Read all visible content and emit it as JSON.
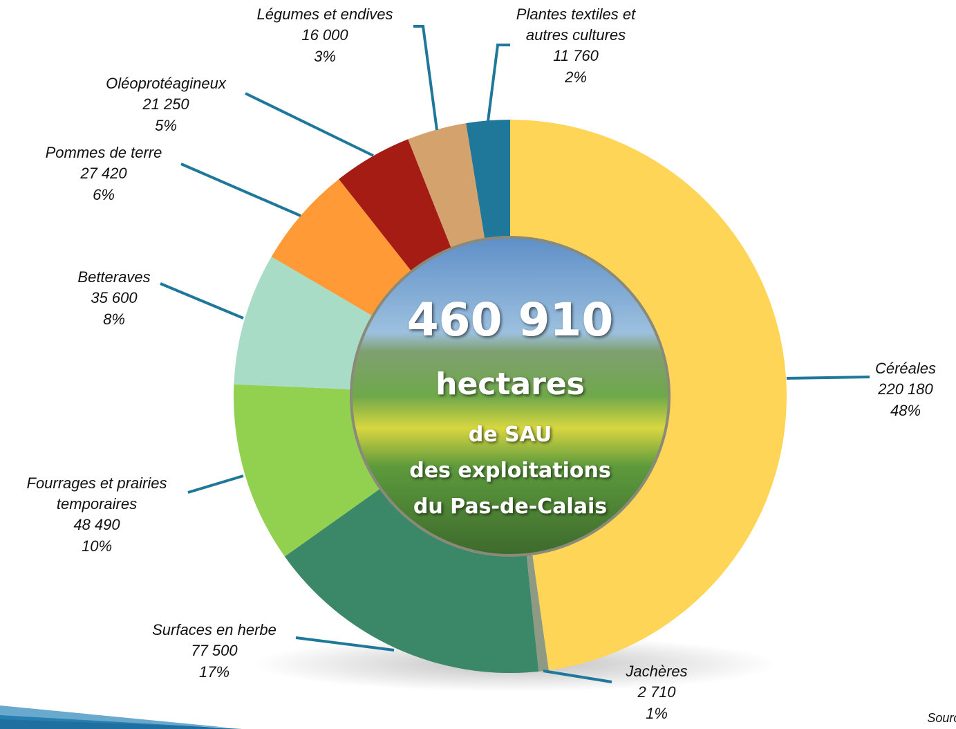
{
  "chart_data": {
    "type": "donut",
    "categories": [
      [
        "Céréales"
      ],
      [
        "Jachères"
      ],
      [
        "Surfaces en herbe"
      ],
      [
        "Fourrages et prairies",
        "temporaires"
      ],
      [
        "Betteraves"
      ],
      [
        "Pommes de terre"
      ],
      [
        "Oléoprotéagineux"
      ],
      [
        "Légumes et endives"
      ],
      [
        "Plantes textiles et",
        "autres cultures"
      ]
    ],
    "values": [
      220180,
      2710,
      77500,
      48490,
      35600,
      27420,
      21250,
      16000,
      11760
    ],
    "value_labels": [
      "220 180",
      "2 710",
      "77 500",
      "48 490",
      "35 600",
      "27 420",
      "21 250",
      "16 000",
      "11 760"
    ],
    "percents": [
      48,
      1,
      17,
      10,
      8,
      6,
      5,
      3,
      2
    ],
    "percent_labels": [
      "48%",
      "1%",
      "17%",
      "10%",
      "8%",
      "6%",
      "5%",
      "3%",
      "2%"
    ],
    "colors": [
      "#FFD558",
      "#8E9A84",
      "#3A8868",
      "#92D050",
      "#A9DCC6",
      "#FF9A36",
      "#A51C14",
      "#D3A26D",
      "#1F789A"
    ],
    "center_text": [
      "460 910",
      "hectares",
      "de SAU",
      "des exploitations",
      "du Pas-de-Calais"
    ],
    "source": "Source : A"
  }
}
